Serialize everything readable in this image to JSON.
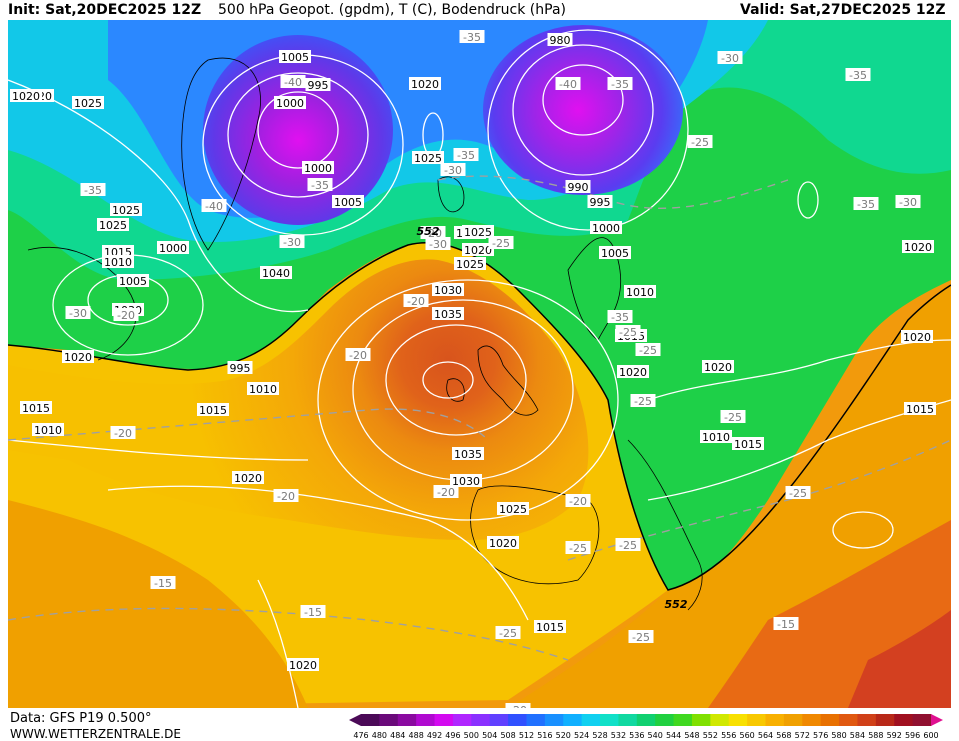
{
  "header": {
    "init": "Init: Sat,20DEC2025 12Z",
    "title": "500 hPa Geopot. (gpdm), T (C), Bodendruck (hPa)",
    "valid": "Valid: Sat,27DEC2025 12Z"
  },
  "footer": {
    "source": "Data: GFS P19 0.500°",
    "site": "WWW.WETTERZENTRALE.DE"
  },
  "colorbar": {
    "ticks": [
      "476",
      "480",
      "484",
      "488",
      "492",
      "496",
      "500",
      "504",
      "508",
      "512",
      "516",
      "520",
      "524",
      "528",
      "532",
      "536",
      "540",
      "544",
      "548",
      "552",
      "556",
      "560",
      "564",
      "568",
      "572",
      "576",
      "580",
      "584",
      "588",
      "592",
      "596",
      "600"
    ],
    "colors": [
      "#4b0a57",
      "#6a0a7a",
      "#8a0aa0",
      "#b00ad0",
      "#d30af0",
      "#b026ff",
      "#8a30ff",
      "#6040ff",
      "#3050ff",
      "#2070ff",
      "#1890ff",
      "#10b0ff",
      "#10d0f0",
      "#10e0c8",
      "#10d8a0",
      "#10d070",
      "#20d040",
      "#40d820",
      "#80e000",
      "#d0e800",
      "#f8e000",
      "#f8c800",
      "#f8b000",
      "#f0a000",
      "#f08800",
      "#e87000",
      "#e05810",
      "#d04018",
      "#b82818",
      "#a01020",
      "#901030"
    ]
  },
  "isobars": [
    {
      "text": "1020",
      "cls": "iso"
    },
    {
      "text": "1025",
      "cls": "iso"
    },
    {
      "text": "1005",
      "cls": "iso"
    },
    {
      "text": "1000",
      "cls": "iso"
    },
    {
      "text": "995",
      "cls": "iso"
    },
    {
      "text": "1000",
      "cls": "iso"
    },
    {
      "text": "1005",
      "cls": "iso"
    },
    {
      "text": "1020",
      "cls": "iso"
    },
    {
      "text": "1025",
      "cls": "iso"
    },
    {
      "text": "980",
      "cls": "iso"
    },
    {
      "text": "990",
      "cls": "iso"
    },
    {
      "text": "995",
      "cls": "iso"
    },
    {
      "text": "1000",
      "cls": "iso"
    },
    {
      "text": "1005",
      "cls": "iso"
    },
    {
      "text": "1010",
      "cls": "iso"
    },
    {
      "text": "1015",
      "cls": "iso"
    },
    {
      "text": "1020",
      "cls": "iso"
    },
    {
      "text": "1020",
      "cls": "iso"
    },
    {
      "text": "1025",
      "cls": "iso"
    },
    {
      "text": "1030",
      "cls": "iso"
    },
    {
      "text": "1025",
      "cls": "iso"
    },
    {
      "text": "1015",
      "cls": "iso"
    },
    {
      "text": "1010",
      "cls": "iso"
    },
    {
      "text": "1005",
      "cls": "iso"
    },
    {
      "text": "1000",
      "cls": "iso"
    },
    {
      "text": "1020",
      "cls": "iso"
    },
    {
      "text": "995",
      "cls": "iso"
    },
    {
      "text": "1010",
      "cls": "iso"
    },
    {
      "text": "1025",
      "cls": "iso"
    },
    {
      "text": "1030",
      "cls": "iso"
    },
    {
      "text": "1035",
      "cls": "iso"
    },
    {
      "text": "1040",
      "cls": "iso"
    },
    {
      "text": "1010",
      "cls": "iso"
    },
    {
      "text": "1015",
      "cls": "iso"
    },
    {
      "text": "1010",
      "cls": "iso"
    },
    {
      "text": "1015",
      "cls": "iso"
    },
    {
      "text": "1020",
      "cls": "iso"
    },
    {
      "text": "1035",
      "cls": "iso"
    },
    {
      "text": "1030",
      "cls": "iso"
    },
    {
      "text": "1025",
      "cls": "iso"
    },
    {
      "text": "1020",
      "cls": "iso"
    },
    {
      "text": "1020",
      "cls": "iso"
    },
    {
      "text": "1020",
      "cls": "iso"
    },
    {
      "text": "1015",
      "cls": "iso"
    },
    {
      "text": "1010",
      "cls": "iso"
    },
    {
      "text": "1015",
      "cls": "iso"
    },
    {
      "text": "1020",
      "cls": "iso"
    },
    {
      "text": "1015",
      "cls": "iso"
    },
    {
      "text": "1020",
      "cls": "iso"
    },
    {
      "text": "1025",
      "cls": "iso"
    },
    {
      "text": "1020",
      "cls": "iso"
    }
  ],
  "temps": [
    {
      "text": "-35"
    },
    {
      "text": "-40"
    },
    {
      "text": "-35"
    },
    {
      "text": "-40"
    },
    {
      "text": "-35"
    },
    {
      "text": "-30"
    },
    {
      "text": "-35"
    },
    {
      "text": "-30"
    },
    {
      "text": "-35"
    },
    {
      "text": "-25"
    },
    {
      "text": "-35"
    },
    {
      "text": "-40"
    },
    {
      "text": "-30"
    },
    {
      "text": "-35"
    },
    {
      "text": "-30"
    },
    {
      "text": "-25"
    },
    {
      "text": "-30"
    },
    {
      "text": "-25"
    },
    {
      "text": "-20"
    },
    {
      "text": "-20"
    },
    {
      "text": "-20"
    },
    {
      "text": "-20"
    },
    {
      "text": "-20"
    },
    {
      "text": "-20"
    },
    {
      "text": "-20"
    },
    {
      "text": "-35"
    },
    {
      "text": "-25"
    },
    {
      "text": "-25"
    },
    {
      "text": "-25"
    },
    {
      "text": "-25"
    },
    {
      "text": "-25"
    },
    {
      "text": "-20"
    },
    {
      "text": "-15"
    },
    {
      "text": "-15"
    },
    {
      "text": "-15"
    },
    {
      "text": "-25"
    },
    {
      "text": "-25"
    },
    {
      "text": "-20"
    },
    {
      "text": "-25"
    },
    {
      "text": "-30"
    }
  ],
  "contour552": [
    "552",
    "552"
  ]
}
